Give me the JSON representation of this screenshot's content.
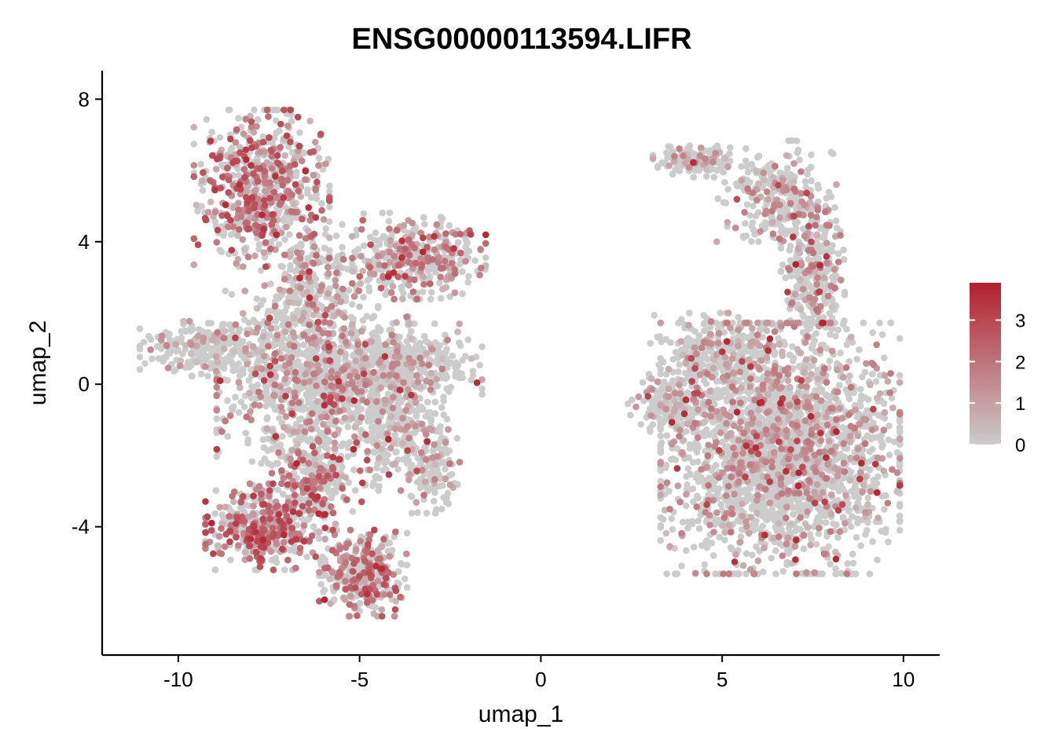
{
  "chart_data": {
    "type": "scatter",
    "title": "ENSG00000113594.LIFR",
    "xlabel": "umap_1",
    "ylabel": "umap_2",
    "xlim": [
      -12.1,
      11.0
    ],
    "ylim": [
      -7.6,
      8.8
    ],
    "x_ticks": [
      -10,
      -5,
      0,
      5,
      10
    ],
    "x_tick_labels": [
      "-10",
      "-5",
      "0",
      "5",
      "10"
    ],
    "y_ticks": [
      -4,
      0,
      4,
      8
    ],
    "y_tick_labels": [
      "-4",
      "0",
      "4",
      "8"
    ],
    "grid": false,
    "legend_position": "right",
    "colorbar": {
      "min": 0,
      "max": 3.9,
      "ticks": [
        0,
        1,
        2,
        3
      ],
      "tick_labels": [
        "0",
        "1",
        "2",
        "3"
      ],
      "low_color": "#cccccc",
      "high_color": "#b2202e"
    },
    "clusters": [
      {
        "cx": -7.7,
        "cy": 5.5,
        "sx": 0.85,
        "sy": 1.0,
        "n": 650,
        "expr": 0.95
      },
      {
        "cx": -3.5,
        "cy": 3.6,
        "sx": 0.9,
        "sy": 0.55,
        "n": 400,
        "expr": 0.7
      },
      {
        "cx": -6.4,
        "cy": 2.7,
        "sx": 0.6,
        "sy": 0.9,
        "n": 220,
        "expr": 0.45
      },
      {
        "cx": -9.3,
        "cy": 1.0,
        "sx": 0.8,
        "sy": 0.35,
        "n": 220,
        "expr": 0.3
      },
      {
        "cx": -6.3,
        "cy": 0.2,
        "sx": 1.2,
        "sy": 1.1,
        "n": 1000,
        "expr": 0.5
      },
      {
        "cx": -3.6,
        "cy": 0.6,
        "sx": 0.9,
        "sy": 0.5,
        "n": 350,
        "expr": 0.4
      },
      {
        "cx": -4.0,
        "cy": -1.2,
        "sx": 0.6,
        "sy": 0.9,
        "n": 320,
        "expr": 0.35
      },
      {
        "cx": -2.9,
        "cy": -2.3,
        "sx": 0.3,
        "sy": 0.6,
        "n": 120,
        "expr": 0.45
      },
      {
        "cx": -6.1,
        "cy": -2.6,
        "sx": 0.6,
        "sy": 0.6,
        "n": 220,
        "expr": 0.9
      },
      {
        "cx": -7.6,
        "cy": -4.0,
        "sx": 0.75,
        "sy": 0.55,
        "n": 420,
        "expr": 1.05
      },
      {
        "cx": -4.9,
        "cy": -5.3,
        "sx": 0.55,
        "sy": 0.55,
        "n": 330,
        "expr": 0.9
      },
      {
        "cx": 4.3,
        "cy": 6.25,
        "sx": 0.55,
        "sy": 0.2,
        "n": 150,
        "expr": 0.35
      },
      {
        "cx": 6.5,
        "cy": 5.3,
        "sx": 0.75,
        "sy": 0.7,
        "n": 280,
        "expr": 0.45
      },
      {
        "cx": 7.5,
        "cy": 3.2,
        "sx": 0.4,
        "sy": 0.9,
        "n": 280,
        "expr": 0.5
      },
      {
        "cx": 5.0,
        "cy": 0.9,
        "sx": 0.9,
        "sy": 0.5,
        "n": 260,
        "expr": 0.35
      },
      {
        "cx": 6.6,
        "cy": -1.8,
        "sx": 1.5,
        "sy": 1.6,
        "n": 2400,
        "expr": 0.45
      },
      {
        "cx": 3.5,
        "cy": -0.6,
        "sx": 0.5,
        "sy": 0.4,
        "n": 150,
        "expr": 0.25
      }
    ]
  }
}
